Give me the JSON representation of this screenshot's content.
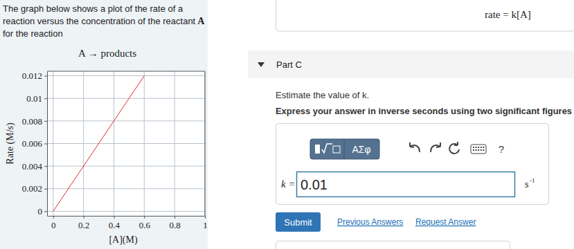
{
  "page": {
    "intro": [
      "The graph below shows a plot of the rate of a",
      "reaction versus the concentration of the reactant",
      "A",
      "for the reaction"
    ],
    "reaction": "A → products",
    "rate_law": "rate = k[A]",
    "part": "Part C",
    "question": "Estimate the value of k.",
    "instruction": "Express your answer in inverse seconds using two significant figures",
    "toolbar": [
      "ΑΣφ",
      "?"
    ],
    "answer_label": "k =",
    "answer_value": "0.01",
    "unit": "s",
    "unit_exponent": "-1",
    "submit": "Submit",
    "links": [
      "Previous Answers",
      "Request Answer"
    ]
  },
  "chart_data": {
    "type": "line",
    "x_label": "[A](M)",
    "y_label": "Rate (M/s)",
    "x": [
      0,
      0.6
    ],
    "values": [
      0,
      0.012
    ],
    "color": "#e0302a",
    "xlim": [
      -0.04,
      1
    ],
    "ylim": [
      -0.0004,
      0.0124
    ],
    "xticks": [
      0,
      0.2,
      0.4,
      0.6,
      0.8,
      1
    ],
    "yticks": [
      0,
      0.002,
      0.004,
      0.006,
      0.008,
      0.01,
      0.012
    ],
    "grid": true
  }
}
